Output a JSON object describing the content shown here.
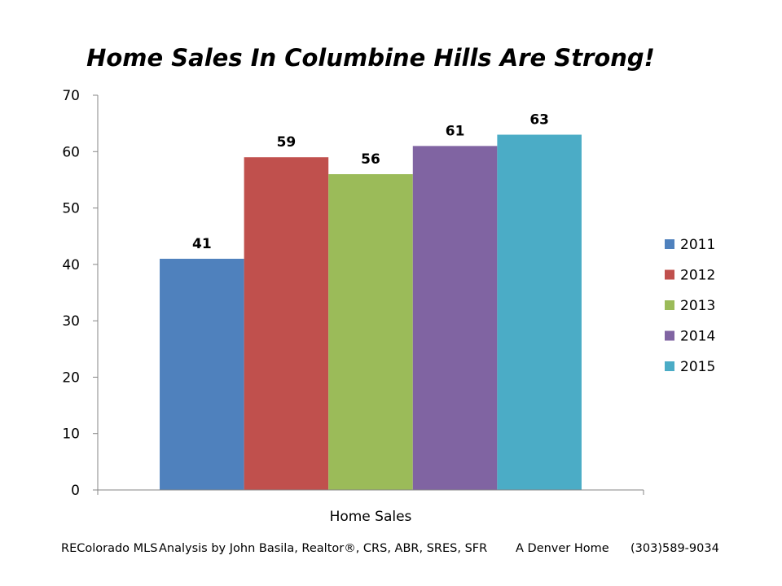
{
  "chart_data": {
    "type": "bar",
    "title": "Home Sales In Columbine Hills Are Strong!",
    "categories": [
      "Home Sales"
    ],
    "series": [
      {
        "name": "2011",
        "values": [
          41
        ],
        "color": "#4F81BD"
      },
      {
        "name": "2012",
        "values": [
          59
        ],
        "color": "#C0504D"
      },
      {
        "name": "2013",
        "values": [
          56
        ],
        "color": "#9BBB59"
      },
      {
        "name": "2014",
        "values": [
          61
        ],
        "color": "#8064A2"
      },
      {
        "name": "2015",
        "values": [
          63
        ],
        "color": "#4BACC6"
      }
    ],
    "ylim": [
      0,
      70
    ],
    "yticks": [
      0,
      10,
      20,
      30,
      40,
      50,
      60,
      70
    ],
    "xlabel": "",
    "ylabel": "",
    "grid": false,
    "legend": "right",
    "data_labels": true
  },
  "footer": {
    "source": "REColorado MLS",
    "analysis": "Analysis by John Basila,  Realtor®, CRS, ABR, SRES, SFR",
    "brand": "A Denver Home",
    "phone": "(303)589-9034"
  }
}
